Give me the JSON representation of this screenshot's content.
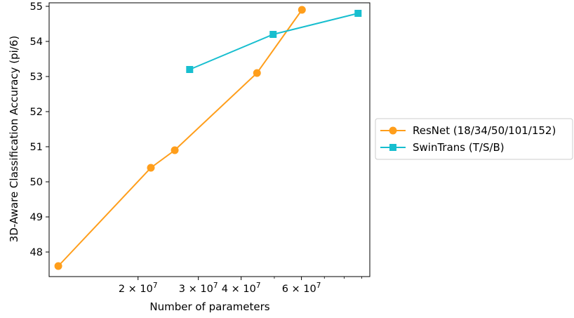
{
  "chart_data": {
    "type": "line",
    "xlabel": "Number of parameters",
    "ylabel": "3D-Aware Classification Accuracy (pi/6)",
    "xscale": "log",
    "xlim": [
      11000000,
      95000000
    ],
    "ylim": [
      47.3,
      55.1
    ],
    "grid": false,
    "legend_position": "outside-right",
    "x_tick_labels": [
      "2 × 10^7",
      "3 × 10^7",
      "4 × 10^7",
      "6 × 10^7"
    ],
    "x_tick_values": [
      20000000,
      30000000,
      40000000,
      60000000
    ],
    "x_minor_tick_values": [
      50000000,
      70000000,
      80000000,
      90000000
    ],
    "y_tick_values": [
      48,
      49,
      50,
      51,
      52,
      53,
      54,
      55
    ],
    "series": [
      {
        "name": "ResNet (18/34/50/101/152)",
        "color": "#ff9e1b",
        "marker": "circle",
        "x": [
          11700000,
          21800000,
          25600000,
          44500000,
          60200000
        ],
        "y": [
          47.6,
          50.4,
          50.9,
          53.1,
          54.9
        ]
      },
      {
        "name": "SwinTrans (T/S/B)",
        "color": "#17becf",
        "marker": "square",
        "x": [
          28300000,
          49600000,
          87800000
        ],
        "y": [
          53.2,
          54.2,
          54.8
        ]
      }
    ]
  }
}
